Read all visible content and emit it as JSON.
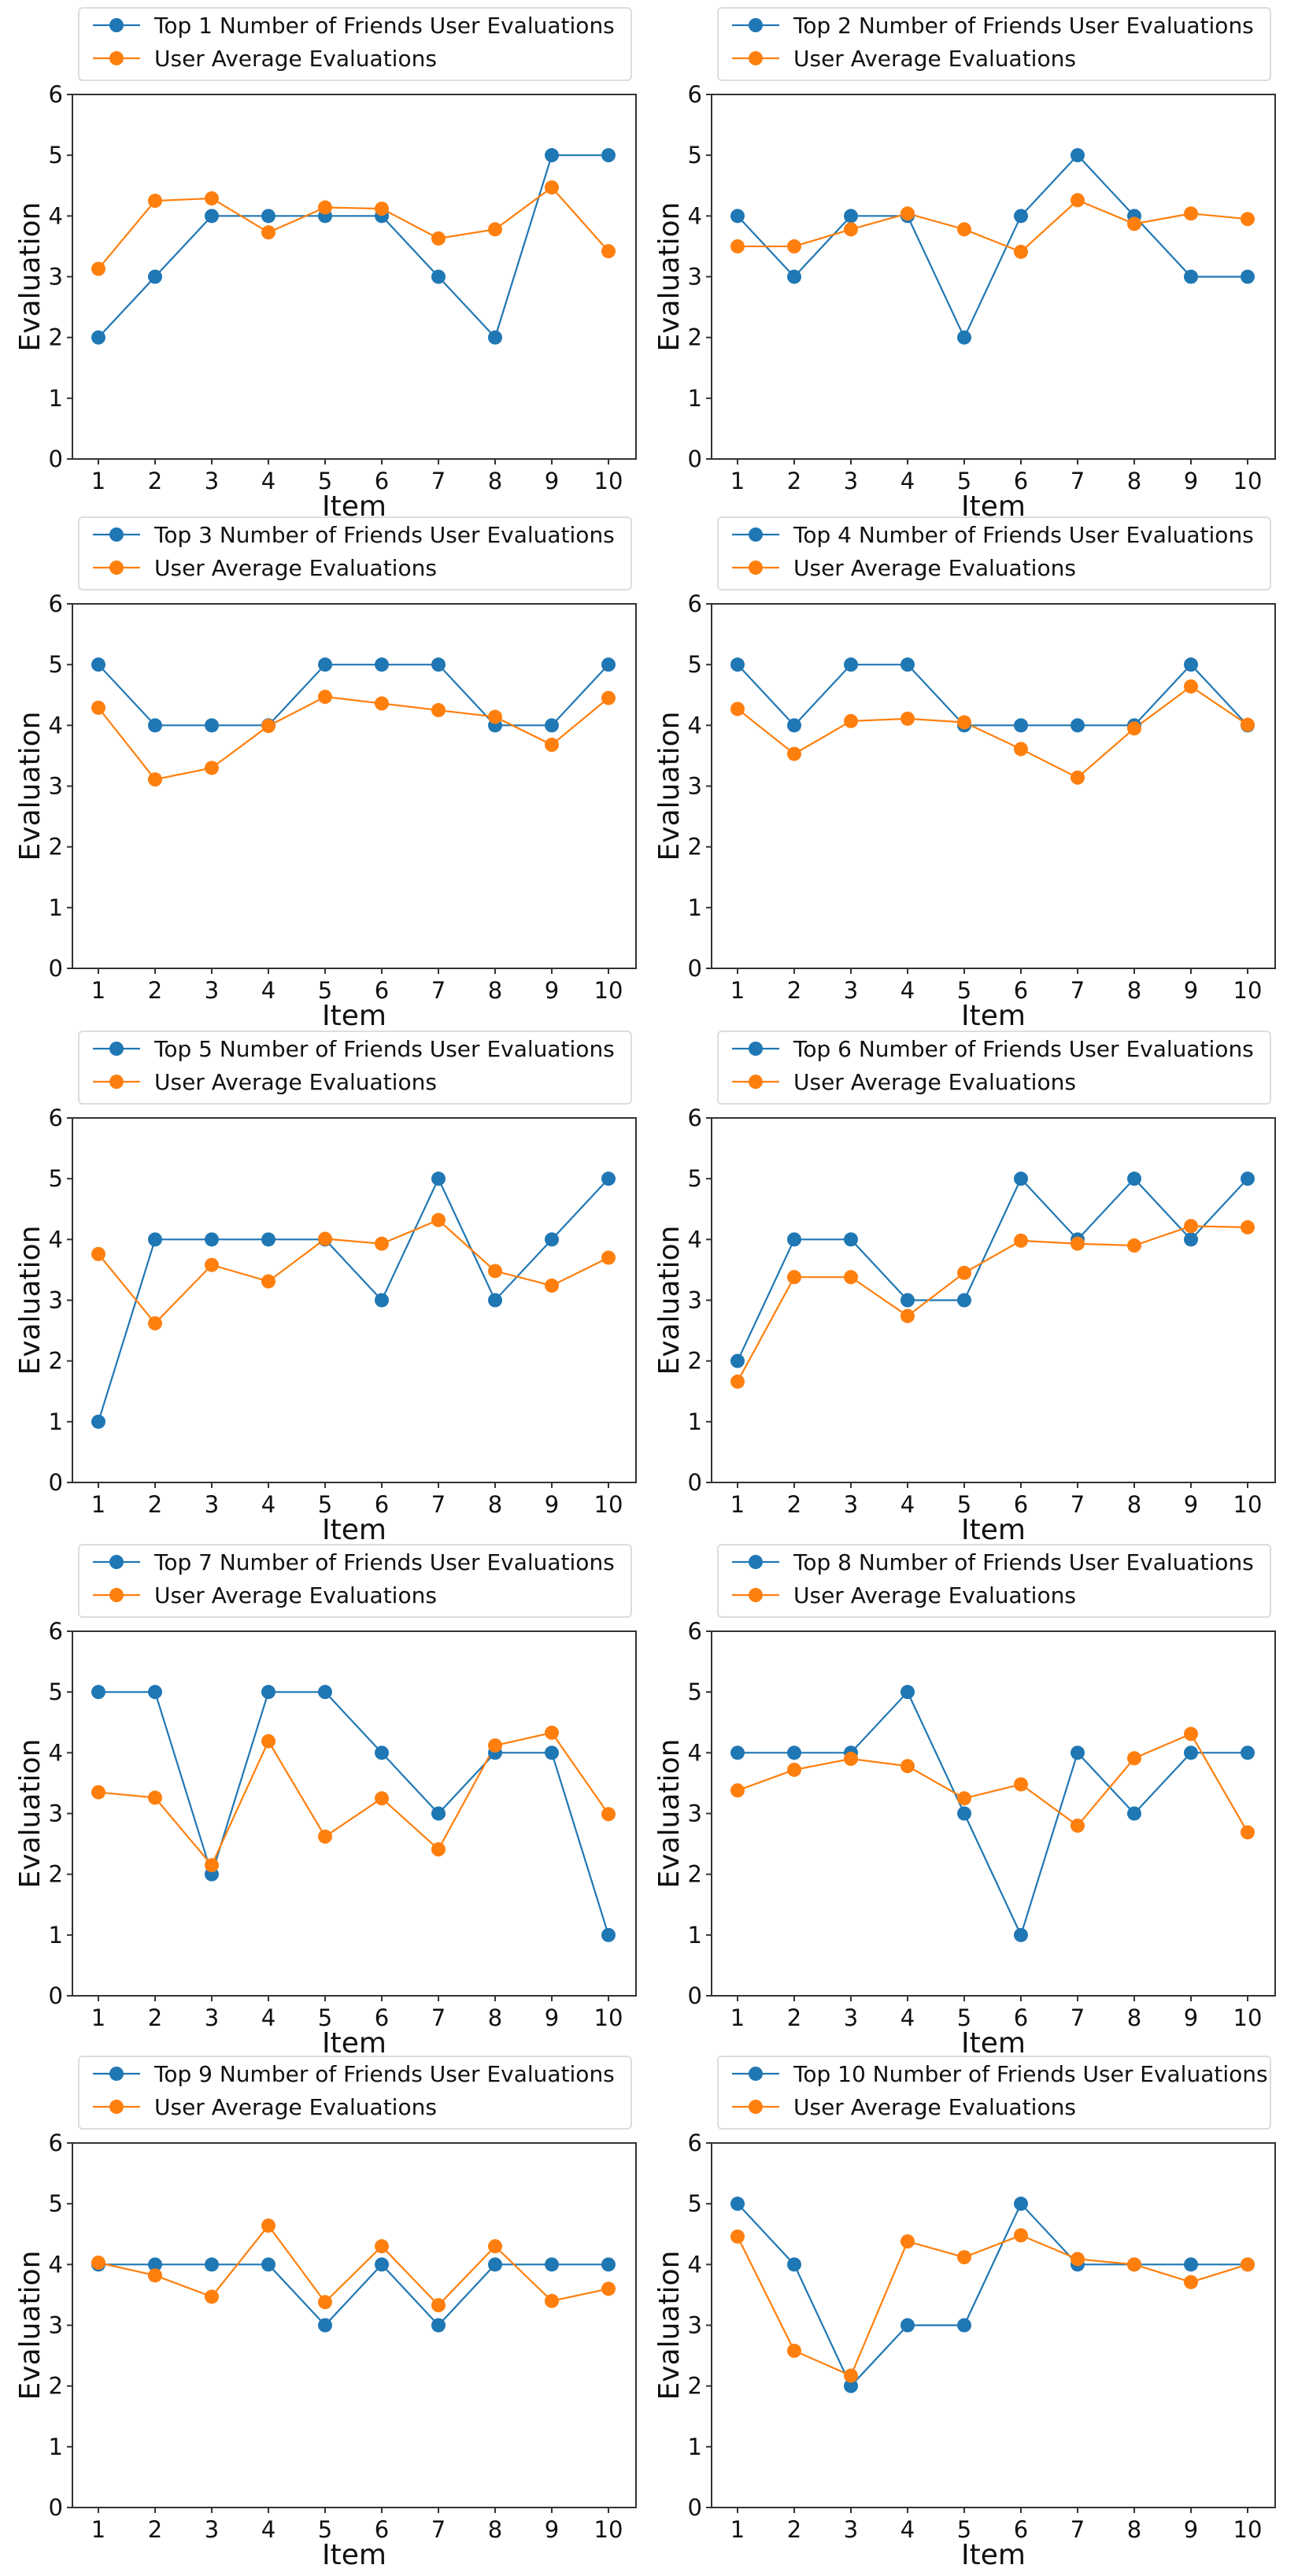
{
  "chart_data": {
    "type": "line",
    "layout": "5x2 grid of subplots",
    "xlabel": "Item",
    "ylabel": "Evaluation",
    "x": [
      1,
      2,
      3,
      4,
      5,
      6,
      7,
      8,
      9,
      10
    ],
    "xticks": [
      "1",
      "2",
      "3",
      "4",
      "5",
      "6",
      "7",
      "8",
      "9",
      "10"
    ],
    "yticks": [
      "0",
      "1",
      "2",
      "3",
      "4",
      "5",
      "6"
    ],
    "ylim": [
      0,
      6
    ],
    "grid": false,
    "legend_placement": "top",
    "colors": {
      "friends": "#1f77b4",
      "average": "#ff7f0e"
    },
    "subplots": [
      {
        "series": [
          {
            "name": "Top 1 Number of Friends User Evaluations",
            "values": [
              2,
              3,
              4,
              4,
              4,
              4,
              3,
              2,
              5,
              5
            ]
          },
          {
            "name": "User Average Evaluations",
            "values": [
              3.13,
              4.25,
              4.29,
              3.73,
              4.14,
              4.12,
              3.63,
              3.78,
              4.47,
              3.42
            ]
          }
        ]
      },
      {
        "series": [
          {
            "name": "Top 2 Number of Friends User Evaluations",
            "values": [
              4,
              3,
              4,
              4,
              2,
              4,
              5,
              4,
              3,
              3
            ]
          },
          {
            "name": "User Average Evaluations",
            "values": [
              3.5,
              3.5,
              3.78,
              4.04,
              3.78,
              3.41,
              4.26,
              3.87,
              4.04,
              3.95
            ]
          }
        ]
      },
      {
        "series": [
          {
            "name": "Top 3 Number of Friends User Evaluations",
            "values": [
              5,
              4,
              4,
              4,
              5,
              5,
              5,
              4,
              4,
              5
            ]
          },
          {
            "name": "User Average Evaluations",
            "values": [
              4.29,
              3.11,
              3.3,
              3.99,
              4.47,
              4.36,
              4.25,
              4.14,
              3.68,
              4.45
            ]
          }
        ]
      },
      {
        "series": [
          {
            "name": "Top 4 Number of Friends User Evaluations",
            "values": [
              5,
              4,
              5,
              5,
              4,
              4,
              4,
              4,
              5,
              4
            ]
          },
          {
            "name": "User Average Evaluations",
            "values": [
              4.27,
              3.53,
              4.07,
              4.11,
              4.05,
              3.61,
              3.14,
              3.95,
              4.64,
              4.01
            ]
          }
        ]
      },
      {
        "series": [
          {
            "name": "Top 5 Number of Friends User Evaluations",
            "values": [
              1,
              4,
              4,
              4,
              4,
              3,
              5,
              3,
              4,
              5
            ]
          },
          {
            "name": "User Average Evaluations",
            "values": [
              3.76,
              2.62,
              3.58,
              3.31,
              4.01,
              3.93,
              4.32,
              3.48,
              3.24,
              3.7
            ]
          }
        ]
      },
      {
        "series": [
          {
            "name": "Top 6 Number of Friends User Evaluations",
            "values": [
              2,
              4,
              4,
              3,
              3,
              5,
              4,
              5,
              4,
              5
            ]
          },
          {
            "name": "User Average Evaluations",
            "values": [
              1.66,
              3.38,
              3.38,
              2.74,
              3.45,
              3.98,
              3.93,
              3.9,
              4.22,
              4.2
            ]
          }
        ]
      },
      {
        "series": [
          {
            "name": "Top 7 Number of Friends User Evaluations",
            "values": [
              5,
              5,
              2,
              5,
              5,
              4,
              3,
              4,
              4,
              1
            ]
          },
          {
            "name": "User Average Evaluations",
            "values": [
              3.35,
              3.26,
              2.15,
              4.19,
              2.62,
              3.25,
              2.41,
              4.12,
              4.33,
              2.99
            ]
          }
        ]
      },
      {
        "series": [
          {
            "name": "Top 8 Number of Friends User Evaluations",
            "values": [
              4,
              4,
              4,
              5,
              3,
              1,
              4,
              3,
              4,
              4
            ]
          },
          {
            "name": "User Average Evaluations",
            "values": [
              3.38,
              3.72,
              3.9,
              3.78,
              3.25,
              3.48,
              2.8,
              3.91,
              4.31,
              2.69
            ]
          }
        ]
      },
      {
        "series": [
          {
            "name": "Top 9 Number of Friends User Evaluations",
            "values": [
              4,
              4,
              4,
              4,
              3,
              4,
              3,
              4,
              4,
              4
            ]
          },
          {
            "name": "User Average Evaluations",
            "values": [
              4.03,
              3.82,
              3.47,
              4.64,
              3.38,
              4.3,
              3.33,
              4.3,
              3.4,
              3.6
            ]
          }
        ]
      },
      {
        "series": [
          {
            "name": "Top 10 Number of Friends User Evaluations",
            "values": [
              5,
              4,
              2,
              3,
              3,
              5,
              4,
              4,
              4,
              4
            ]
          },
          {
            "name": "User Average Evaluations",
            "values": [
              4.46,
              2.58,
              2.17,
              4.38,
              4.12,
              4.48,
              4.09,
              4.0,
              3.71,
              4.0
            ]
          }
        ]
      }
    ]
  }
}
